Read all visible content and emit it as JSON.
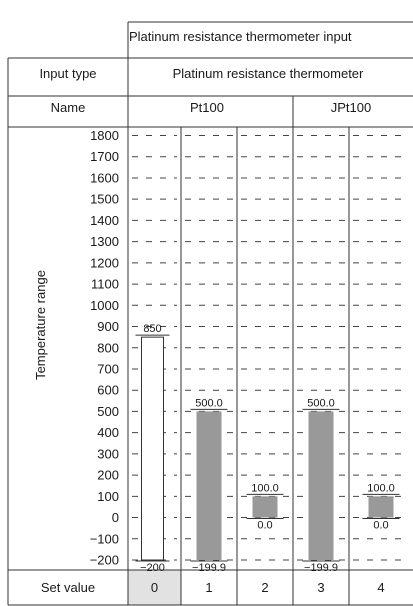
{
  "header": {
    "group_label": "Platinum resistance thermometer input",
    "input_type_label": "Input type",
    "input_type_value": "Platinum resistance thermometer",
    "name_label": "Name",
    "names": [
      {
        "label": "Pt100",
        "columns": [
          0,
          1,
          2
        ]
      },
      {
        "label": "JPt100",
        "columns": [
          3,
          4
        ]
      }
    ],
    "yaxis_title": "Temperature range",
    "set_value_label": "Set value"
  },
  "chart_data": {
    "type": "bar",
    "orientation": "vertical-range",
    "ylabel": "Temperature range",
    "ylim": [
      -200,
      1800
    ],
    "y_ticks": [
      "1800",
      "1700",
      "1600",
      "1500",
      "1400",
      "1300",
      "1200",
      "1100",
      "1000",
      "900",
      "800",
      "700",
      "600",
      "500",
      "400",
      "300",
      "200",
      "100",
      "0",
      "−100",
      "−200"
    ],
    "y_tick_values": [
      1800,
      1700,
      1600,
      1500,
      1400,
      1300,
      1200,
      1100,
      1000,
      900,
      800,
      700,
      600,
      500,
      400,
      300,
      200,
      100,
      0,
      -100,
      -200
    ],
    "grid": "dashed",
    "categories": [
      "0",
      "1",
      "2",
      "3",
      "4"
    ],
    "ranges": [
      {
        "set_value": "0",
        "min": -200,
        "max": 850,
        "min_label": "−200",
        "max_label": "850",
        "highlight": true
      },
      {
        "set_value": "1",
        "min": -199.9,
        "max": 500.0,
        "min_label": "−199.9",
        "max_label": "500.0",
        "highlight": false
      },
      {
        "set_value": "2",
        "min": 0.0,
        "max": 100.0,
        "min_label": "0.0",
        "max_label": "100.0",
        "highlight": false
      },
      {
        "set_value": "3",
        "min": -199.9,
        "max": 500.0,
        "min_label": "−199.9",
        "max_label": "500.0",
        "highlight": false
      },
      {
        "set_value": "4",
        "min": 0.0,
        "max": 100.0,
        "min_label": "0.0",
        "max_label": "100.0",
        "highlight": false
      }
    ]
  },
  "colors": {
    "bar_fill": "#999999",
    "highlight_fill": "#e2e2e2",
    "border": "#333333",
    "grid": "#444444"
  }
}
